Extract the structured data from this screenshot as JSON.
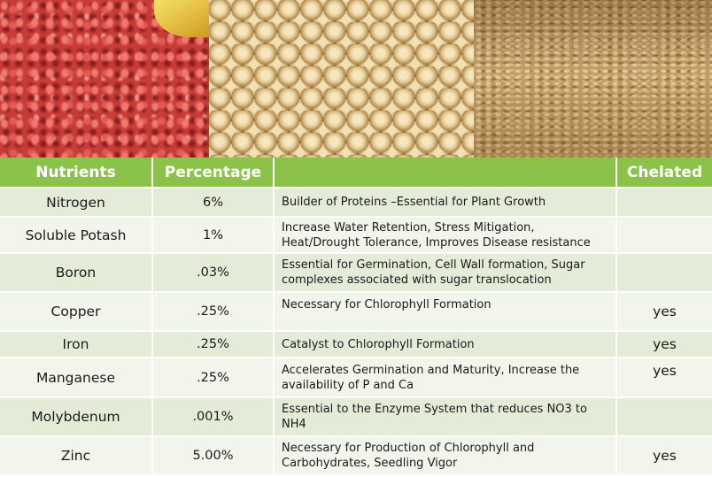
{
  "table": {
    "headers": [
      "Nutrients",
      "Percentage",
      "",
      "Chelated"
    ],
    "rows": [
      {
        "nutrient": "Nitrogen",
        "percentage": "6%",
        "description": "Builder of Proteins –Essential for Plant Growth",
        "chelated": ""
      },
      {
        "nutrient": "Soluble Potash",
        "percentage": "1%",
        "description": "Increase Water Retention, Stress Mitigation, Heat/Drought Tolerance, Improves Disease resistance",
        "chelated": ""
      },
      {
        "nutrient": "Boron",
        "percentage": ".03%",
        "description": "Essential for Germination, Cell Wall formation, Sugar complexes associated with sugar translocation",
        "chelated": ""
      },
      {
        "nutrient": "Copper",
        "percentage": ".25%",
        "description": "Necessary for Chlorophyll Formation",
        "chelated": "yes"
      },
      {
        "nutrient": "Iron",
        "percentage": ".25%",
        "description": "Catalyst to Chlorophyll Formation",
        "chelated": "yes"
      },
      {
        "nutrient": "Manganese",
        "percentage": ".25%",
        "description": "Accelerates Germination and Maturity, Increase the availability of P and Ca",
        "chelated": "yes"
      },
      {
        "nutrient": "Molybdenum",
        "percentage": ".001%",
        "description": "Essential to the Enzyme System that reduces NO3 to NH4",
        "chelated": ""
      },
      {
        "nutrient": "Zinc",
        "percentage": "5.00%",
        "description": "Necessary for Production of Chlorophyll and Carbohydrates, Seedling Vigor",
        "chelated": "yes"
      }
    ]
  },
  "colors": {
    "header_green": "#8bc34a",
    "row_odd": "#e4ecd8",
    "row_even": "#f2f5ec"
  }
}
